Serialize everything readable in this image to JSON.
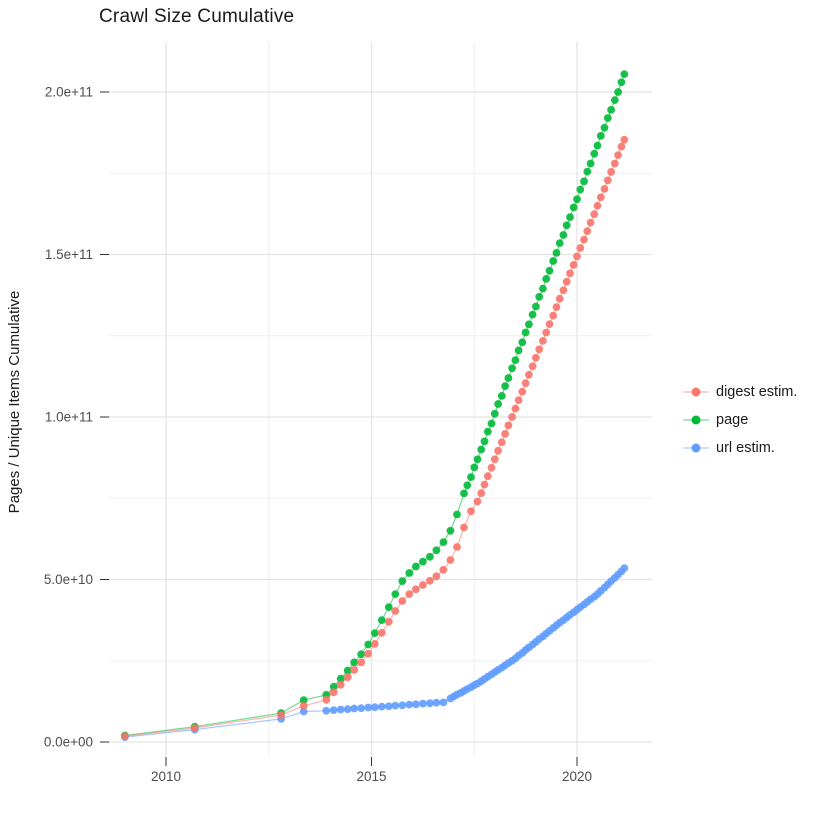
{
  "chart_data": {
    "type": "line+scatter cumulative time series",
    "title": "Crawl Size Cumulative",
    "xlabel": "",
    "ylabel": "Pages / Unique Items Cumulative",
    "grid": "major and minor, light gray on white",
    "legend_position": "right, vertically centered",
    "x_unit": "year (decimal)",
    "y_unit": "items, stored as billions (1e9)",
    "xlim": [
      2008.6,
      2021.85
    ],
    "ylim_e9": [
      -5,
      215
    ],
    "x_ticks": {
      "labels": [
        "2010",
        "2015",
        "2020"
      ],
      "years": [
        2010,
        2015,
        2020
      ],
      "minor_years": [
        2012.5,
        2017.5
      ]
    },
    "y_ticks": {
      "labels": [
        "0.0e+00",
        "5.0e+10",
        "1.0e+11",
        "1.5e+11",
        "2.0e+11"
      ],
      "values_e9": [
        0,
        50,
        100,
        150,
        200
      ],
      "minor_values_e9": [
        25,
        75,
        125,
        175
      ]
    },
    "series": [
      {
        "name": "digest estim.",
        "color": "#F8766D",
        "points_year_value_e9": [
          [
            2009.0,
            1.8
          ],
          [
            2010.7,
            4.3
          ],
          [
            2012.8,
            8.3
          ],
          [
            2013.35,
            11.1
          ],
          [
            2013.9,
            13.0
          ],
          [
            2014.08,
            15.3
          ],
          [
            2014.25,
            17.6
          ],
          [
            2014.42,
            19.9
          ],
          [
            2014.58,
            22.2
          ],
          [
            2014.75,
            24.5
          ],
          [
            2014.92,
            27.2
          ],
          [
            2015.08,
            30.2
          ],
          [
            2015.25,
            33.6
          ],
          [
            2015.42,
            37.0
          ],
          [
            2015.58,
            40.3
          ],
          [
            2015.75,
            43.4
          ],
          [
            2015.92,
            45.5
          ],
          [
            2016.08,
            47.0
          ],
          [
            2016.25,
            48.3
          ],
          [
            2016.42,
            49.6
          ],
          [
            2016.58,
            51.0
          ],
          [
            2016.75,
            53.0
          ],
          [
            2016.92,
            56.0
          ],
          [
            2017.08,
            60.0
          ],
          [
            2017.25,
            66.0
          ],
          [
            2017.42,
            71.0
          ],
          [
            2017.58,
            74.0
          ],
          [
            2017.67,
            76.6
          ],
          [
            2017.75,
            79.2
          ],
          [
            2017.83,
            81.8
          ],
          [
            2017.92,
            84.4
          ],
          [
            2018.0,
            87.0
          ],
          [
            2018.08,
            89.6
          ],
          [
            2018.17,
            92.2
          ],
          [
            2018.25,
            94.8
          ],
          [
            2018.33,
            97.4
          ],
          [
            2018.42,
            100.0
          ],
          [
            2018.5,
            102.6
          ],
          [
            2018.58,
            105.2
          ],
          [
            2018.67,
            107.8
          ],
          [
            2018.75,
            110.4
          ],
          [
            2018.83,
            113.0
          ],
          [
            2018.92,
            115.6
          ],
          [
            2019.0,
            118.2
          ],
          [
            2019.08,
            120.8
          ],
          [
            2019.17,
            123.4
          ],
          [
            2019.25,
            126.0
          ],
          [
            2019.33,
            128.6
          ],
          [
            2019.42,
            131.2
          ],
          [
            2019.5,
            133.8
          ],
          [
            2019.58,
            136.4
          ],
          [
            2019.67,
            139.0
          ],
          [
            2019.75,
            141.6
          ],
          [
            2019.83,
            144.2
          ],
          [
            2019.92,
            146.8
          ],
          [
            2020.0,
            149.4
          ],
          [
            2020.08,
            152.0
          ],
          [
            2020.17,
            154.6
          ],
          [
            2020.25,
            157.2
          ],
          [
            2020.33,
            159.8
          ],
          [
            2020.42,
            162.4
          ],
          [
            2020.5,
            165.0
          ],
          [
            2020.58,
            167.6
          ],
          [
            2020.67,
            170.2
          ],
          [
            2020.75,
            172.8
          ],
          [
            2020.83,
            175.4
          ],
          [
            2020.92,
            178.0
          ],
          [
            2021.0,
            180.6
          ],
          [
            2021.08,
            183.2
          ],
          [
            2021.15,
            185.3
          ]
        ]
      },
      {
        "name": "page",
        "color": "#00BA38",
        "points_year_value_e9": [
          [
            2009.0,
            2.0
          ],
          [
            2010.7,
            4.7
          ],
          [
            2012.8,
            8.9
          ],
          [
            2013.35,
            12.9
          ],
          [
            2013.9,
            14.5
          ],
          [
            2014.08,
            17.0
          ],
          [
            2014.25,
            19.5
          ],
          [
            2014.42,
            22.0
          ],
          [
            2014.58,
            24.5
          ],
          [
            2014.75,
            27.0
          ],
          [
            2014.92,
            30.0
          ],
          [
            2015.08,
            33.5
          ],
          [
            2015.25,
            37.5
          ],
          [
            2015.42,
            41.5
          ],
          [
            2015.58,
            45.5
          ],
          [
            2015.75,
            49.5
          ],
          [
            2015.92,
            52.0
          ],
          [
            2016.08,
            54.0
          ],
          [
            2016.25,
            55.5
          ],
          [
            2016.42,
            57.0
          ],
          [
            2016.58,
            59.0
          ],
          [
            2016.75,
            61.5
          ],
          [
            2016.92,
            65.0
          ],
          [
            2017.08,
            70.0
          ],
          [
            2017.25,
            76.5
          ],
          [
            2017.33,
            79.0
          ],
          [
            2017.42,
            81.5
          ],
          [
            2017.5,
            84.5
          ],
          [
            2017.58,
            87.0
          ],
          [
            2017.67,
            90.0
          ],
          [
            2017.75,
            92.5
          ],
          [
            2017.83,
            95.5
          ],
          [
            2017.92,
            98.0
          ],
          [
            2018.0,
            101.0
          ],
          [
            2018.08,
            104.0
          ],
          [
            2018.17,
            106.5
          ],
          [
            2018.25,
            109.5
          ],
          [
            2018.33,
            112.0
          ],
          [
            2018.42,
            115.0
          ],
          [
            2018.5,
            117.5
          ],
          [
            2018.58,
            120.5
          ],
          [
            2018.67,
            123.0
          ],
          [
            2018.75,
            126.0
          ],
          [
            2018.83,
            128.5
          ],
          [
            2018.92,
            131.5
          ],
          [
            2019.0,
            134.0
          ],
          [
            2019.08,
            137.0
          ],
          [
            2019.17,
            139.5
          ],
          [
            2019.25,
            142.5
          ],
          [
            2019.33,
            145.0
          ],
          [
            2019.42,
            148.0
          ],
          [
            2019.5,
            150.5
          ],
          [
            2019.58,
            153.5
          ],
          [
            2019.67,
            156.0
          ],
          [
            2019.75,
            159.0
          ],
          [
            2019.83,
            161.5
          ],
          [
            2019.92,
            164.5
          ],
          [
            2020.0,
            167.0
          ],
          [
            2020.08,
            170.0
          ],
          [
            2020.17,
            172.5
          ],
          [
            2020.25,
            175.5
          ],
          [
            2020.33,
            178.0
          ],
          [
            2020.42,
            181.0
          ],
          [
            2020.5,
            183.5
          ],
          [
            2020.58,
            186.5
          ],
          [
            2020.67,
            189.0
          ],
          [
            2020.75,
            192.0
          ],
          [
            2020.83,
            194.5
          ],
          [
            2020.92,
            197.5
          ],
          [
            2021.0,
            200.0
          ],
          [
            2021.08,
            203.0
          ],
          [
            2021.15,
            205.5
          ]
        ]
      },
      {
        "name": "url estim.",
        "color": "#619CFF",
        "points_year_value_e9": [
          [
            2009.0,
            1.5
          ],
          [
            2010.7,
            3.8
          ],
          [
            2012.8,
            7.1
          ],
          [
            2013.35,
            9.4
          ],
          [
            2013.9,
            9.6
          ],
          [
            2014.08,
            9.8
          ],
          [
            2014.25,
            10.0
          ],
          [
            2014.42,
            10.1
          ],
          [
            2014.58,
            10.3
          ],
          [
            2014.75,
            10.4
          ],
          [
            2014.92,
            10.6
          ],
          [
            2015.08,
            10.7
          ],
          [
            2015.25,
            10.9
          ],
          [
            2015.42,
            11.0
          ],
          [
            2015.58,
            11.2
          ],
          [
            2015.75,
            11.3
          ],
          [
            2015.92,
            11.5
          ],
          [
            2016.08,
            11.6
          ],
          [
            2016.25,
            11.8
          ],
          [
            2016.42,
            11.9
          ],
          [
            2016.58,
            12.1
          ],
          [
            2016.75,
            12.2
          ],
          [
            2016.92,
            13.4
          ],
          [
            2017.0,
            14.0
          ],
          [
            2017.08,
            14.6
          ],
          [
            2017.17,
            15.1
          ],
          [
            2017.25,
            15.7
          ],
          [
            2017.33,
            16.3
          ],
          [
            2017.42,
            16.9
          ],
          [
            2017.5,
            17.5
          ],
          [
            2017.58,
            18.0
          ],
          [
            2017.67,
            18.7
          ],
          [
            2017.75,
            19.4
          ],
          [
            2017.83,
            20.1
          ],
          [
            2017.92,
            20.8
          ],
          [
            2018.0,
            21.5
          ],
          [
            2018.08,
            22.2
          ],
          [
            2018.17,
            22.9
          ],
          [
            2018.25,
            23.6
          ],
          [
            2018.33,
            24.3
          ],
          [
            2018.42,
            25.0
          ],
          [
            2018.5,
            25.7
          ],
          [
            2018.58,
            26.6
          ],
          [
            2018.67,
            27.4
          ],
          [
            2018.75,
            28.3
          ],
          [
            2018.83,
            29.1
          ],
          [
            2018.92,
            30.0
          ],
          [
            2019.0,
            30.8
          ],
          [
            2019.08,
            31.7
          ],
          [
            2019.17,
            32.5
          ],
          [
            2019.25,
            33.4
          ],
          [
            2019.33,
            34.2
          ],
          [
            2019.42,
            35.1
          ],
          [
            2019.5,
            35.9
          ],
          [
            2019.58,
            36.7
          ],
          [
            2019.67,
            37.5
          ],
          [
            2019.75,
            38.3
          ],
          [
            2019.83,
            39.1
          ],
          [
            2019.92,
            39.9
          ],
          [
            2020.0,
            40.7
          ],
          [
            2020.08,
            41.5
          ],
          [
            2020.17,
            42.3
          ],
          [
            2020.25,
            43.1
          ],
          [
            2020.33,
            43.9
          ],
          [
            2020.42,
            44.7
          ],
          [
            2020.5,
            45.5
          ],
          [
            2020.58,
            46.5
          ],
          [
            2020.67,
            47.5
          ],
          [
            2020.75,
            48.5
          ],
          [
            2020.83,
            49.5
          ],
          [
            2020.92,
            50.5
          ],
          [
            2021.0,
            51.5
          ],
          [
            2021.08,
            52.5
          ],
          [
            2021.15,
            53.5
          ]
        ]
      }
    ]
  },
  "style": {
    "grid_major_color": "#E3E3E3",
    "grid_minor_color": "#EFEFEF",
    "tick_color": "#333333",
    "tick_label_color": "#4D4D4D",
    "point_radius": 3.9,
    "line_opacity": 0.55,
    "point_opacity": 0.9
  }
}
